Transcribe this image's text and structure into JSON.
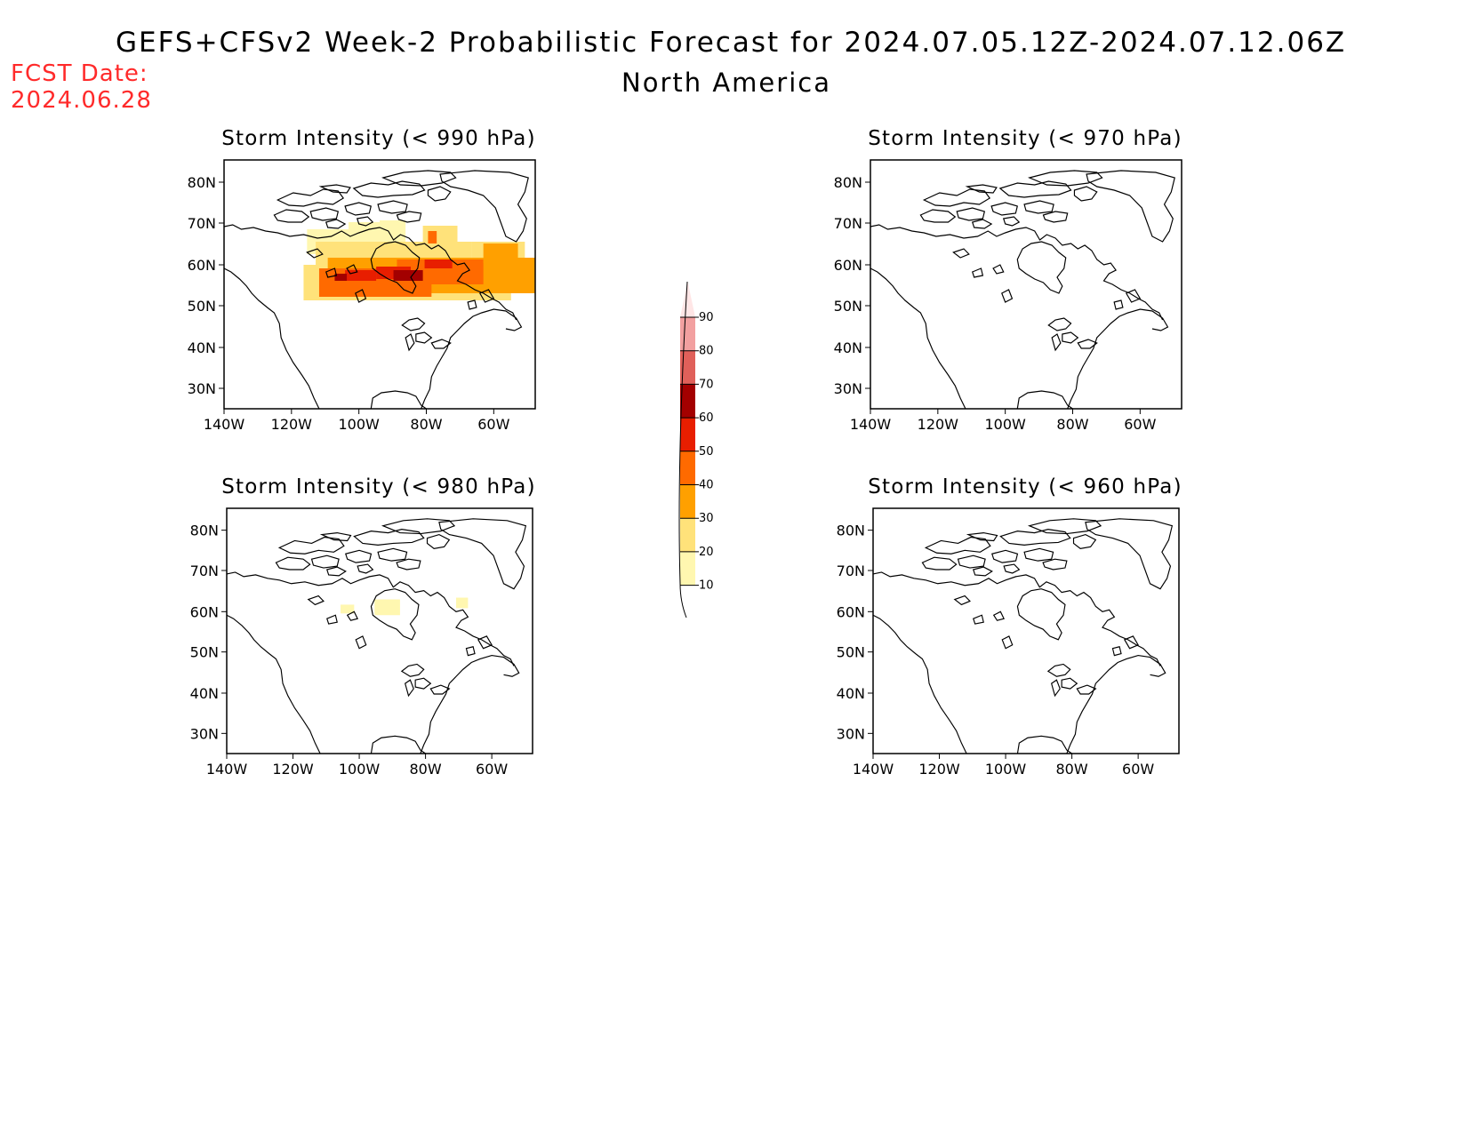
{
  "header": {
    "title": "GEFS+CFSv2 Week-2 Probabilistic Forecast for 2024.07.05.12Z-2024.07.12.06Z",
    "region": "North America",
    "fcst_label": "FCST Date:",
    "fcst_date": "2024.06.28"
  },
  "axes": {
    "lat_ticks": [
      "80N",
      "70N",
      "60N",
      "50N",
      "40N",
      "30N"
    ],
    "lon_ticks": [
      "140W",
      "120W",
      "100W",
      "80W",
      "60W"
    ]
  },
  "panels": [
    {
      "id": "p990",
      "title": "Storm Intensity (< 990 hPa)"
    },
    {
      "id": "p970",
      "title": "Storm Intensity (< 970 hPa)"
    },
    {
      "id": "p980",
      "title": "Storm Intensity (< 980 hPa)"
    },
    {
      "id": "p960",
      "title": "Storm Intensity (< 960 hPa)"
    }
  ],
  "colorbar": {
    "levels": [
      "10",
      "20",
      "30",
      "40",
      "50",
      "60",
      "70",
      "80",
      "90"
    ],
    "colors": [
      "#fff7b0",
      "#ffe27a",
      "#ffa000",
      "#ff6a00",
      "#e81e00",
      "#a30000",
      "#e0605a",
      "#f2a0a0",
      "#ffe6e6"
    ]
  }
}
